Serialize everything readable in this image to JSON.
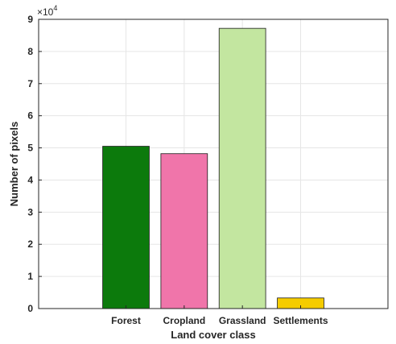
{
  "chart_data": {
    "type": "bar",
    "categories": [
      "Forest",
      "Cropland",
      "Grassland",
      "Settlements"
    ],
    "values": [
      50500,
      48200,
      87200,
      3300
    ],
    "colors": [
      "#0c7a0c",
      "#f075aa",
      "#c3e6a0",
      "#f5cc00"
    ],
    "xlabel": "Land cover class",
    "ylabel": "Number of pixels",
    "ylim": [
      0,
      90000
    ],
    "yticks": [
      0,
      1,
      2,
      3,
      4,
      5,
      6,
      7,
      8,
      9
    ],
    "y_multiplier_base": "×10",
    "y_multiplier_exp": "4",
    "grid": true
  }
}
